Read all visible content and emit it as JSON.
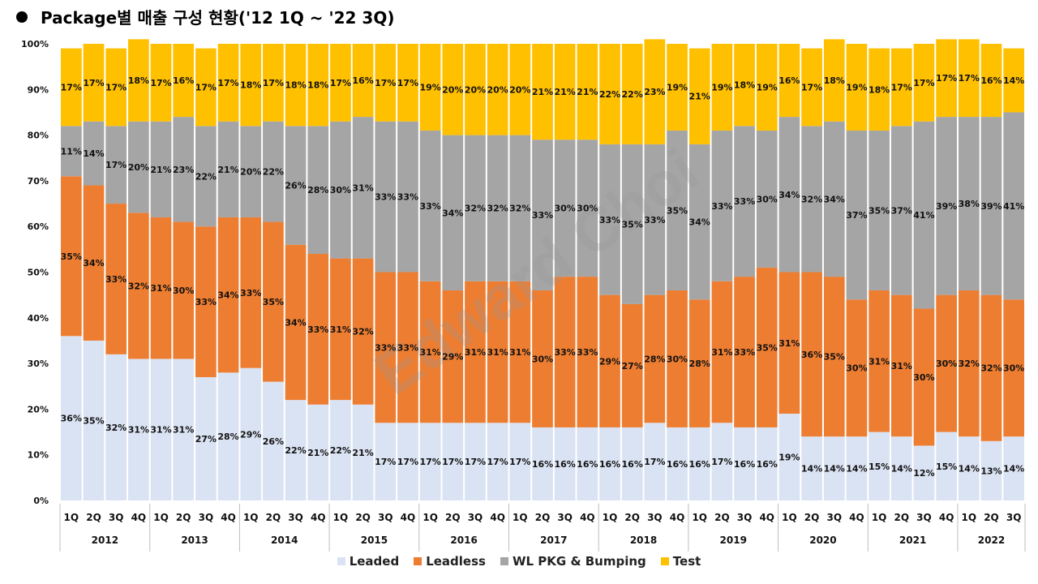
{
  "title": "Package별 매출 구성 현황('12 1Q ~ '22 3Q)",
  "watermark": "Edward Choi",
  "colors": {
    "Leaded": "#dae3f3",
    "Leadless": "#ed7d31",
    "WL PKG & Bumping": "#a5a5a5",
    "Test": "#ffc000"
  },
  "chart_data": {
    "type": "bar",
    "stacked": true,
    "title": "Package별 매출 구성 현황('12 1Q ~ '22 3Q)",
    "xlabel": "",
    "ylabel": "",
    "ylim": [
      0,
      100
    ],
    "yticks": [
      "0%",
      "10%",
      "20%",
      "30%",
      "40%",
      "50%",
      "60%",
      "70%",
      "80%",
      "90%",
      "100%"
    ],
    "grid": false,
    "legend_position": "bottom",
    "categories": [
      "1Q",
      "2Q",
      "3Q",
      "4Q",
      "1Q",
      "2Q",
      "3Q",
      "4Q",
      "1Q",
      "2Q",
      "3Q",
      "4Q",
      "1Q",
      "2Q",
      "3Q",
      "4Q",
      "1Q",
      "2Q",
      "3Q",
      "4Q",
      "1Q",
      "2Q",
      "3Q",
      "4Q",
      "1Q",
      "2Q",
      "3Q",
      "4Q",
      "1Q",
      "2Q",
      "3Q",
      "4Q",
      "1Q",
      "2Q",
      "3Q",
      "4Q",
      "1Q",
      "2Q",
      "3Q",
      "4Q",
      "1Q",
      "2Q",
      "3Q"
    ],
    "year_groups": [
      {
        "label": "2012",
        "count": 4
      },
      {
        "label": "2013",
        "count": 4
      },
      {
        "label": "2014",
        "count": 4
      },
      {
        "label": "2015",
        "count": 4
      },
      {
        "label": "2016",
        "count": 4
      },
      {
        "label": "2017",
        "count": 4
      },
      {
        "label": "2018",
        "count": 4
      },
      {
        "label": "2019",
        "count": 4
      },
      {
        "label": "2020",
        "count": 4
      },
      {
        "label": "2021",
        "count": 4
      },
      {
        "label": "2022",
        "count": 3
      }
    ],
    "series": [
      {
        "name": "Leaded",
        "values": [
          36,
          35,
          32,
          31,
          31,
          31,
          27,
          28,
          29,
          26,
          22,
          21,
          22,
          21,
          17,
          17,
          17,
          17,
          17,
          17,
          17,
          16,
          16,
          16,
          16,
          16,
          17,
          16,
          16,
          17,
          16,
          16,
          19,
          14,
          14,
          14,
          15,
          14,
          12,
          15,
          14,
          13,
          14
        ]
      },
      {
        "name": "Leadless",
        "values": [
          35,
          34,
          33,
          32,
          31,
          30,
          33,
          34,
          33,
          35,
          34,
          33,
          31,
          32,
          33,
          33,
          31,
          29,
          31,
          31,
          31,
          30,
          33,
          33,
          29,
          27,
          28,
          30,
          28,
          31,
          33,
          35,
          31,
          36,
          35,
          30,
          31,
          31,
          30,
          30,
          32,
          32,
          30
        ]
      },
      {
        "name": "WL PKG & Bumping",
        "values": [
          11,
          14,
          17,
          20,
          21,
          23,
          22,
          21,
          20,
          22,
          26,
          28,
          30,
          31,
          33,
          33,
          33,
          34,
          32,
          32,
          32,
          33,
          30,
          30,
          33,
          35,
          33,
          35,
          34,
          33,
          33,
          30,
          34,
          32,
          34,
          37,
          35,
          37,
          41,
          39,
          38,
          39,
          41
        ]
      },
      {
        "name": "Test",
        "values": [
          17,
          17,
          17,
          18,
          17,
          16,
          17,
          17,
          18,
          17,
          18,
          18,
          17,
          16,
          17,
          17,
          19,
          20,
          20,
          20,
          20,
          21,
          21,
          21,
          22,
          22,
          23,
          19,
          21,
          19,
          18,
          19,
          16,
          17,
          18,
          19,
          18,
          17,
          17,
          17,
          17,
          16,
          14
        ]
      }
    ]
  }
}
